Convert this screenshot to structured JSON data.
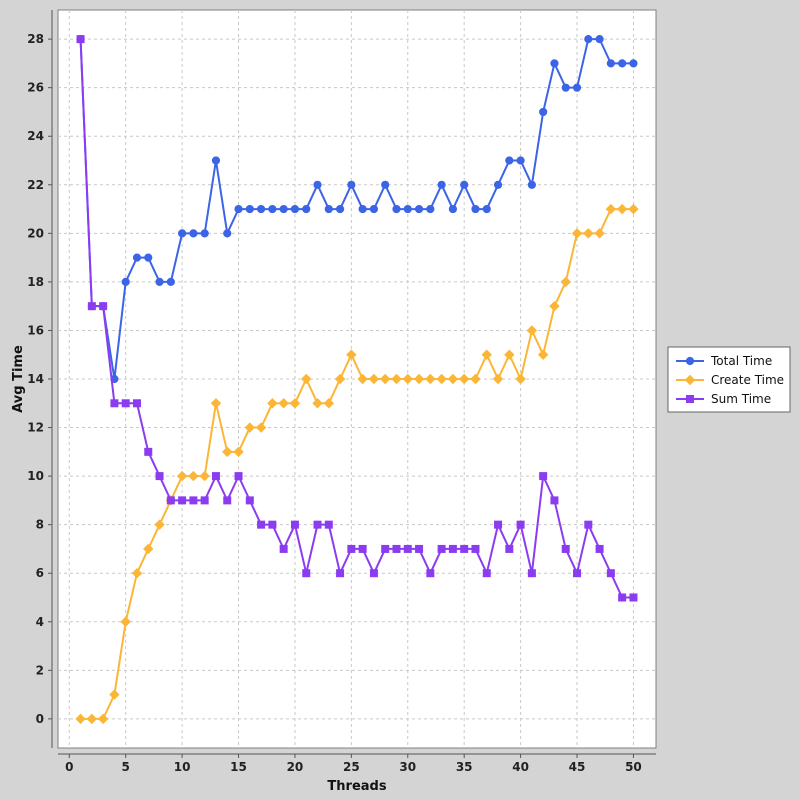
{
  "chart_data": {
    "type": "line",
    "xlabel": "Threads",
    "ylabel": "Avg Time",
    "xlim": [
      -1,
      52
    ],
    "ylim": [
      -1.2,
      29.2
    ],
    "xticks": [
      0,
      5,
      10,
      15,
      20,
      25,
      30,
      35,
      40,
      45,
      50
    ],
    "yticks": [
      0,
      2,
      4,
      6,
      8,
      10,
      12,
      14,
      16,
      18,
      20,
      22,
      24,
      26,
      28
    ],
    "grid": true,
    "legend_position": "right",
    "x": [
      1,
      2,
      3,
      4,
      5,
      6,
      7,
      8,
      9,
      10,
      11,
      12,
      13,
      14,
      15,
      16,
      17,
      18,
      19,
      20,
      21,
      22,
      23,
      24,
      25,
      26,
      27,
      28,
      29,
      30,
      31,
      32,
      33,
      34,
      35,
      36,
      37,
      38,
      39,
      40,
      41,
      42,
      43,
      44,
      45,
      46,
      47,
      48,
      49,
      50
    ],
    "series": [
      {
        "name": "Total Time",
        "color": "#3c64e6",
        "marker": "circle",
        "values": [
          28,
          17,
          17,
          14,
          18,
          19,
          19,
          18,
          18,
          20,
          20,
          20,
          23,
          20,
          21,
          21,
          21,
          21,
          21,
          21,
          21,
          22,
          21,
          21,
          22,
          21,
          21,
          22,
          21,
          21,
          21,
          21,
          22,
          21,
          22,
          21,
          21,
          22,
          23,
          23,
          22,
          25,
          27,
          26,
          26,
          28,
          28,
          27,
          27,
          27
        ]
      },
      {
        "name": "Create Time",
        "color": "#fbb637",
        "marker": "diamond",
        "values": [
          0,
          0,
          0,
          1,
          4,
          6,
          7,
          8,
          9,
          10,
          10,
          10,
          13,
          11,
          11,
          12,
          12,
          13,
          13,
          13,
          14,
          13,
          13,
          14,
          15,
          14,
          14,
          14,
          14,
          14,
          14,
          14,
          14,
          14,
          14,
          14,
          15,
          14,
          15,
          14,
          16,
          15,
          17,
          18,
          20,
          20,
          20,
          21,
          21,
          21
        ]
      },
      {
        "name": "Sum Time",
        "color": "#8c3cf0",
        "marker": "square",
        "values": [
          28,
          17,
          17,
          13,
          13,
          13,
          11,
          10,
          9,
          9,
          9,
          9,
          10,
          9,
          10,
          9,
          8,
          8,
          7,
          8,
          6,
          8,
          8,
          6,
          7,
          7,
          6,
          7,
          7,
          7,
          7,
          6,
          7,
          7,
          7,
          7,
          6,
          8,
          7,
          8,
          6,
          10,
          9,
          7,
          6,
          8,
          7,
          6,
          5,
          5
        ]
      }
    ]
  }
}
